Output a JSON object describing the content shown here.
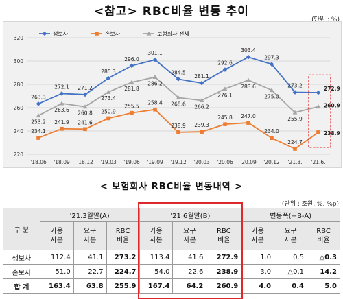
{
  "titles": {
    "chart_title": "<참고> RBC비율 변동 추이",
    "table_title": "< 보험회사 RBC비율 변동내역 >"
  },
  "units": {
    "chart_unit": "(단위 : %)",
    "table_unit": "(단위 : 조원, %, %p)"
  },
  "chart_data": {
    "type": "line",
    "categories": [
      "'18.06",
      "'18.09",
      "'18.12",
      "'19.03",
      "'19.06",
      "'19.09",
      "'19.12",
      "'20.03",
      "'20.06",
      "'20.09",
      "'20.12",
      "'21.3.",
      "'21.6."
    ],
    "ylim": [
      220,
      320
    ],
    "yticks": [
      220,
      240,
      260,
      280,
      300,
      320
    ],
    "grid": true,
    "legend": "top-left",
    "series": [
      {
        "name": "생보사",
        "color": "#4472c4",
        "marker": "diamond",
        "values": [
          263.3,
          272.1,
          271.2,
          285.3,
          296.0,
          301.1,
          284.5,
          281.1,
          292.6,
          303.4,
          297.3,
          273.2,
          272.9
        ]
      },
      {
        "name": "손보사",
        "color": "#ed7d31",
        "marker": "square",
        "values": [
          234.1,
          241.9,
          241.6,
          250.9,
          255.5,
          258.4,
          238.9,
          239.3,
          245.8,
          247.0,
          234.0,
          224.7,
          238.9
        ]
      },
      {
        "name": "보험회사 전체",
        "color": "#a5a5a5",
        "marker": "triangle",
        "values": [
          253.2,
          263.6,
          260.8,
          273.4,
          281.8,
          286.2,
          268.6,
          266.2,
          276.1,
          283.6,
          275.0,
          255.9,
          260.9
        ]
      }
    ]
  },
  "table": {
    "group_header": "구 분",
    "col_groups": [
      "'21.3월말(A)",
      "'21.6월말(B)",
      "변동폭(=B-A)"
    ],
    "sub_headers": [
      [
        "가용",
        "자본"
      ],
      [
        "요구",
        "자본"
      ],
      [
        "RBC",
        "비율"
      ]
    ],
    "rows": [
      {
        "label": "생보사",
        "a": [
          "112.4",
          "41.1",
          "273.2"
        ],
        "b": [
          "113.4",
          "41.6",
          "272.9"
        ],
        "diff": [
          "1.0",
          "0.5",
          "△0.3"
        ]
      },
      {
        "label": "손보사",
        "a": [
          "51.0",
          "22.7",
          "224.7"
        ],
        "b": [
          "54.0",
          "22.6",
          "238.9"
        ],
        "diff": [
          "3.0",
          "△0.1",
          "14.2"
        ]
      },
      {
        "label": "합 계",
        "a": [
          "163.4",
          "63.8",
          "255.9"
        ],
        "b": [
          "167.4",
          "64.2",
          "260.9"
        ],
        "diff": [
          "4.0",
          "0.4",
          "5.0"
        ]
      }
    ]
  }
}
